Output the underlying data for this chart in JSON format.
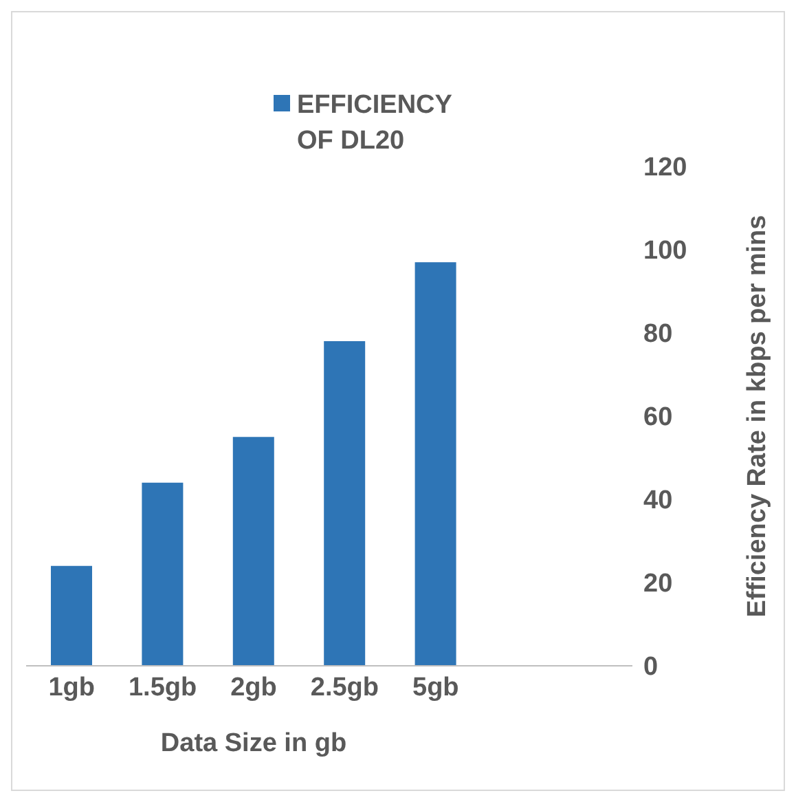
{
  "chart_data": {
    "type": "bar",
    "xlabel": "Data Size in gb",
    "ylabel": "Efficiency Rate in kbps per mins",
    "categories": [
      "1gb",
      "1.5gb",
      "2gb",
      "2.5gb",
      "5gb"
    ],
    "series": [
      {
        "name": "EFFICIENCY OF DL20",
        "color": "#2e75b6",
        "values": [
          24,
          44,
          55,
          78,
          97
        ]
      }
    ],
    "ylim": [
      0,
      120
    ],
    "yticks": [
      0,
      20,
      40,
      60,
      80,
      100,
      120
    ],
    "grid": false,
    "legend": "top"
  }
}
